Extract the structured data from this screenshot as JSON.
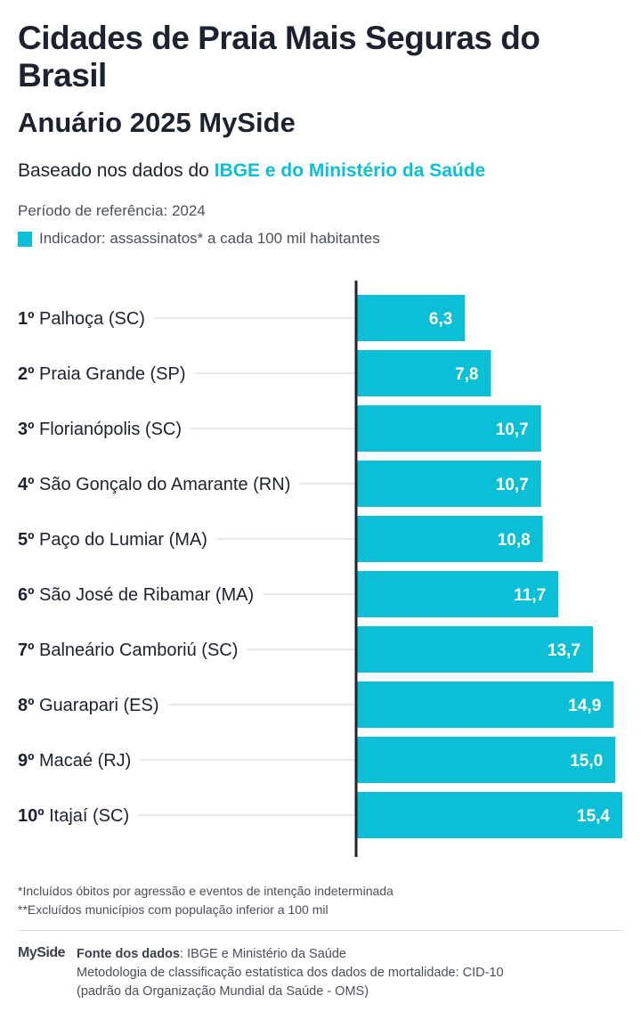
{
  "header": {
    "title": "Cidades de Praia Mais Seguras do Brasil",
    "subtitle": "Anuário 2025 MySide",
    "basis_prefix": "Baseado nos dados do ",
    "basis_highlight": "IBGE e do Ministério da Saúde",
    "period": "Período de referência: 2024",
    "legend": "Indicador: assassinatos* a cada 100 mil habitantes"
  },
  "chart_data": {
    "type": "bar",
    "orientation": "horizontal",
    "ranks": [
      "1º",
      "2º",
      "3º",
      "4º",
      "5º",
      "6º",
      "7º",
      "8º",
      "9º",
      "10º"
    ],
    "categories": [
      "Palhoça (SC)",
      "Praia Grande (SP)",
      "Florianópolis (SC)",
      "São Gonçalo do Amarante (RN)",
      "Paço do Lumiar (MA)",
      "São José de Ribamar (MA)",
      "Balneário Camboriú (SC)",
      "Guarapari (ES)",
      "Macaé (RJ)",
      "Itajaí (SC)"
    ],
    "values": [
      6.3,
      7.8,
      10.7,
      10.7,
      10.8,
      11.7,
      13.7,
      14.9,
      15.0,
      15.4
    ],
    "value_labels": [
      "6,3",
      "7,8",
      "10,7",
      "10,7",
      "10,8",
      "11,7",
      "13,7",
      "14,9",
      "15,0",
      "15,4"
    ],
    "bar_color": "#0bbfd6",
    "grid": false
  },
  "notes": [
    "*Incluídos óbitos por agressão e eventos de intenção indeterminada",
    "**Excluídos municípios com população inferior a 100 mil"
  ],
  "footer": {
    "logo": "MySide",
    "source_label": "Fonte dos dados",
    "source_value": ": IBGE e Ministério da Saúde",
    "methodology": "Metodologia de classificação estatística dos dados de mortalidade: CID-10",
    "methodology2": "(padrão da Organização Mundial da Saúde - OMS)"
  }
}
